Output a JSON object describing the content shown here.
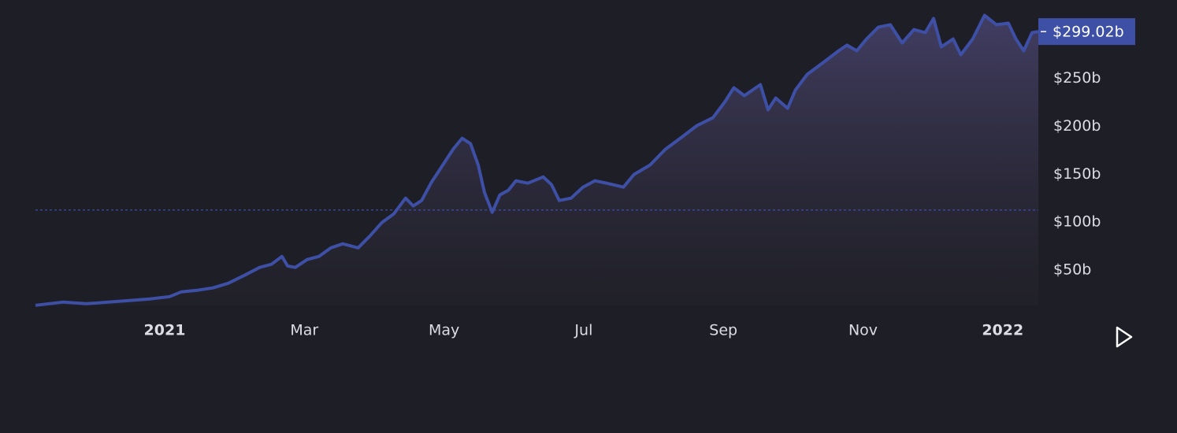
{
  "chart_data": {
    "type": "area",
    "color": "#3e4fa6",
    "x": [
      -1.85,
      -1.45,
      -1.12,
      -0.66,
      -0.21,
      0.07,
      0.24,
      0.46,
      0.69,
      0.91,
      1.14,
      1.36,
      1.53,
      1.68,
      1.76,
      1.87,
      2.04,
      2.21,
      2.38,
      2.55,
      2.77,
      2.94,
      3.11,
      3.28,
      3.45,
      3.56,
      3.68,
      3.82,
      3.96,
      4.13,
      4.26,
      4.38,
      4.49,
      4.58,
      4.69,
      4.8,
      4.92,
      5.03,
      5.2,
      5.42,
      5.54,
      5.65,
      5.82,
      5.99,
      6.16,
      6.33,
      6.57,
      6.72,
      6.95,
      7.17,
      7.4,
      7.62,
      7.85,
      8.02,
      8.15,
      8.3,
      8.53,
      8.64,
      8.75,
      8.92,
      9.03,
      9.2,
      9.43,
      9.65,
      9.77,
      9.91,
      10.05,
      10.22,
      10.39,
      10.56,
      10.73,
      10.89,
      11.01,
      11.12,
      11.29,
      11.4,
      11.57,
      11.74,
      11.91,
      12.08,
      12.19,
      12.3,
      12.42,
      12.51
    ],
    "values": [
      13.2,
      16.5,
      14.8,
      17.3,
      19.8,
      22.2,
      27.2,
      28.8,
      31.3,
      36.2,
      44.4,
      52.7,
      56.0,
      64.2,
      54.3,
      52.7,
      60.9,
      64.2,
      73.2,
      77.4,
      73.2,
      85.6,
      99.6,
      108.6,
      125.1,
      116.9,
      122.6,
      141.6,
      157.2,
      176.1,
      187.6,
      181.9,
      159.7,
      130.9,
      110.3,
      128.4,
      133.3,
      143.2,
      140.7,
      147.3,
      139.1,
      122.6,
      125.1,
      136.6,
      143.2,
      140.7,
      136.6,
      149.8,
      159.7,
      176.1,
      188.5,
      200.8,
      209.0,
      225.5,
      240.3,
      232.1,
      243.6,
      217.3,
      229.6,
      218.9,
      237.8,
      254.3,
      266.7,
      279.0,
      284.8,
      279.0,
      291.3,
      303.7,
      306.2,
      287.2,
      301.2,
      297.9,
      312.7,
      283.1,
      291.3,
      274.9,
      291.3,
      316.0,
      306.2,
      307.8,
      291.3,
      279.0,
      297.9,
      299.02
    ],
    "value_labels": [
      null,
      null,
      null,
      null,
      null,
      null,
      null,
      null,
      null,
      null,
      null,
      null,
      null,
      null,
      null,
      null,
      null,
      null,
      null,
      null,
      null,
      null,
      null,
      null,
      null,
      null,
      null,
      null,
      null,
      null,
      null,
      null,
      null,
      null,
      null,
      null,
      null,
      null,
      null,
      null,
      null,
      null,
      null,
      null,
      null,
      null,
      null,
      null,
      null,
      null,
      null,
      null,
      null,
      null,
      null,
      null,
      null,
      null,
      null,
      null,
      null,
      null,
      null,
      null,
      null,
      null,
      null,
      null,
      null,
      null,
      null,
      null,
      null,
      null,
      null,
      null,
      null,
      null,
      null,
      null,
      null,
      null,
      null,
      "$299.02b"
    ],
    "reference_line": 112.7,
    "xlim": [
      -1.85,
      12.51
    ],
    "xticks": [
      {
        "value": 0,
        "label": "2021"
      },
      {
        "value": 2,
        "label": "Mar"
      },
      {
        "value": 4,
        "label": "May"
      },
      {
        "value": 6,
        "label": "Jul"
      },
      {
        "value": 8,
        "label": "Sep"
      },
      {
        "value": 10,
        "label": "Nov"
      },
      {
        "value": 12,
        "label": "2022"
      }
    ],
    "ylim": [
      13,
      332
    ],
    "yticks": [
      {
        "value": 50,
        "label": "$50b"
      },
      {
        "value": 100,
        "label": "$100b"
      },
      {
        "value": 150,
        "label": "$150b"
      },
      {
        "value": 200,
        "label": "$200b"
      },
      {
        "value": 250,
        "label": "$250b"
      }
    ]
  }
}
